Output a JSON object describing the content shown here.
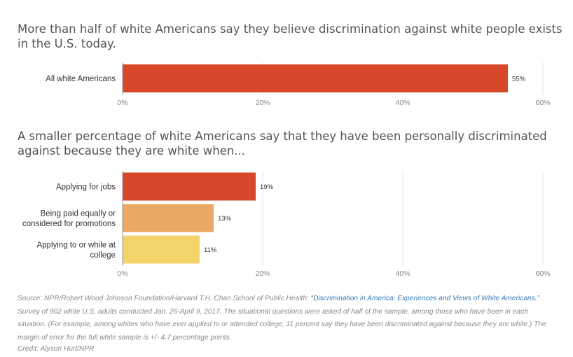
{
  "chart_data": [
    {
      "type": "bar",
      "orientation": "horizontal",
      "title": "More than half of white Americans say they believe discrimination against white people exists in the U.S. today.",
      "categories": [
        "All white Americans"
      ],
      "values": [
        55
      ],
      "value_labels": [
        "55%"
      ],
      "xlim": [
        0,
        60
      ],
      "ticks": [
        0,
        20,
        40,
        60
      ],
      "tick_labels": [
        "0%",
        "20%",
        "40%",
        "60%"
      ],
      "colors": [
        "#d9472b"
      ],
      "grid": true
    },
    {
      "type": "bar",
      "orientation": "horizontal",
      "title": "A smaller percentage of white Americans say that they have been personally discriminated against because they are white when...",
      "categories": [
        [
          "Applying for jobs"
        ],
        [
          "Being paid equally or",
          "considered for promotions"
        ],
        [
          "Applying to or while at",
          "college"
        ]
      ],
      "values": [
        19,
        13,
        11
      ],
      "value_labels": [
        "19%",
        "13%",
        "11%"
      ],
      "xlim": [
        0,
        60
      ],
      "ticks": [
        0,
        20,
        40,
        60
      ],
      "tick_labels": [
        "0%",
        "20%",
        "40%",
        "60%"
      ],
      "colors": [
        "#d9472b",
        "#e9a864",
        "#f2d46b"
      ],
      "grid": true
    }
  ],
  "footer": {
    "source_prefix": "Source: NPR/Robert Wood Johnson Foundation/Harvard T.H. Chan School of Public Health: ",
    "source_link": "“Discrimination in America: Experiences and Views of White Americans.”",
    "source_rest": " Survey of 902 white U.S. adults conducted Jan. 26-April 9, 2017. The situational questions were asked of half of the sample, among those who have been in each situation. (For example, among whites who have ever applied to or attended college, 11 percent say they have been discriminated against because they are white.) The margin of error for the full white sample is +/- 4.7 percentage points.",
    "credit": "Credit: Alyson Hurt/NPR"
  }
}
